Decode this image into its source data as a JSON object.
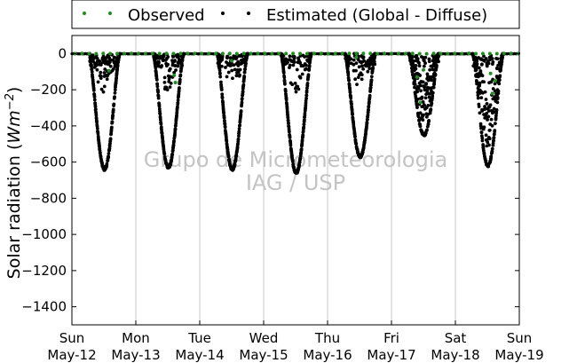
{
  "chart_data": {
    "type": "scatter",
    "ylabel": "Solar radiation (",
    "ylabel_unit": "Wm",
    "ylabel_exp": "−2",
    "ylabel_close": ")",
    "ylim": [
      -1500,
      100
    ],
    "yticks": [
      0,
      -200,
      -400,
      -600,
      -800,
      -1000,
      -1200,
      -1400
    ],
    "ytick_labels": [
      "0",
      "−200",
      "−400",
      "−600",
      "−800",
      "−1000",
      "−1200",
      "−1400"
    ],
    "x_range_days": [
      0,
      7
    ],
    "xticks": [
      {
        "day": 0,
        "weekday": "Sun",
        "date": "May-12"
      },
      {
        "day": 1,
        "weekday": "Mon",
        "date": "May-13"
      },
      {
        "day": 2,
        "weekday": "Tue",
        "date": "May-14"
      },
      {
        "day": 3,
        "weekday": "Wed",
        "date": "May-15"
      },
      {
        "day": 4,
        "weekday": "Thu",
        "date": "May-16"
      },
      {
        "day": 5,
        "weekday": "Fri",
        "date": "May-17"
      },
      {
        "day": 6,
        "weekday": "Sat",
        "date": "May-18"
      },
      {
        "day": 7,
        "weekday": "Sun",
        "date": "May-19"
      }
    ],
    "grid": "vertical",
    "legend_position": "top",
    "series": [
      {
        "name": "Observed",
        "color": "#228b22",
        "note": "green points near 0 at night, occasional small negative values"
      },
      {
        "name": "Estimated (Global - Diffuse)",
        "color": "#000000",
        "daily_minimum": [
          {
            "date": "May-12",
            "value": -640
          },
          {
            "date": "May-13",
            "value": -630
          },
          {
            "date": "May-14",
            "value": -640
          },
          {
            "date": "May-15",
            "value": -660
          },
          {
            "date": "May-16",
            "value": -570
          },
          {
            "date": "May-17",
            "value": -450
          },
          {
            "date": "May-18",
            "value": -620
          }
        ]
      }
    ],
    "watermark": [
      "Grupo de Micrometeorologia",
      "IAG / USP"
    ]
  }
}
